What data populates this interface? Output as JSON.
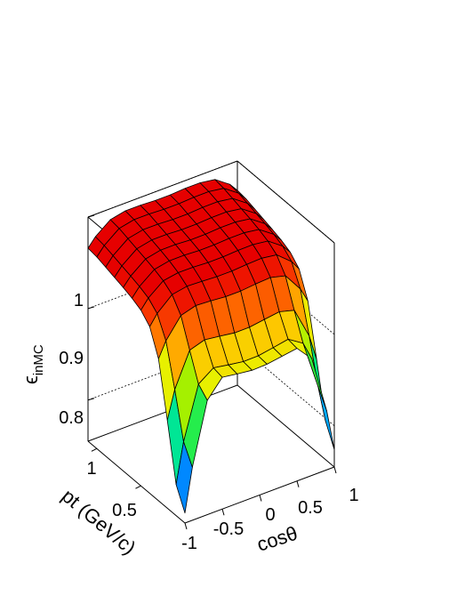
{
  "chart_data": {
    "type": "surface",
    "zlabel": "ϵ",
    "zlabel_sub": "inMC",
    "xlabel": "cosθ",
    "ylabel": "pt (GeV/c)",
    "x_ticks": [
      "-1",
      "-0.5",
      "0",
      "0.5",
      "1"
    ],
    "y_ticks": [
      "0.5",
      "1"
    ],
    "z_ticks": [
      "0.8",
      "0.9",
      "1"
    ],
    "xlim": [
      -1,
      1
    ],
    "ylim": [
      0,
      1.1
    ],
    "zlim": [
      0.755,
      1.0
    ],
    "x_edges": [
      -1.0,
      -0.9,
      -0.7,
      -0.5,
      -0.3,
      -0.1,
      0.1,
      0.3,
      0.5,
      0.7,
      0.9,
      1.0
    ],
    "y_edges": [
      0.0,
      0.1,
      0.2,
      0.3,
      0.4,
      0.5,
      0.6,
      0.7,
      0.8,
      0.9,
      1.0,
      1.1
    ],
    "z": [
      [
        0.766,
        0.86,
        0.9,
        0.898,
        0.895,
        0.894,
        0.896,
        0.899,
        0.901,
        0.864,
        0.774
      ],
      [
        0.812,
        0.893,
        0.905,
        0.902,
        0.898,
        0.896,
        0.898,
        0.902,
        0.905,
        0.895,
        0.82
      ],
      [
        0.89,
        0.932,
        0.944,
        0.944,
        0.942,
        0.94,
        0.942,
        0.944,
        0.944,
        0.933,
        0.892
      ],
      [
        0.93,
        0.955,
        0.962,
        0.962,
        0.96,
        0.96,
        0.96,
        0.962,
        0.962,
        0.956,
        0.932
      ],
      [
        0.944,
        0.965,
        0.97,
        0.97,
        0.969,
        0.968,
        0.969,
        0.97,
        0.97,
        0.966,
        0.946
      ],
      [
        0.95,
        0.97,
        0.975,
        0.976,
        0.975,
        0.974,
        0.975,
        0.976,
        0.975,
        0.971,
        0.952
      ],
      [
        0.954,
        0.973,
        0.979,
        0.98,
        0.979,
        0.978,
        0.979,
        0.98,
        0.979,
        0.975,
        0.956
      ],
      [
        0.957,
        0.976,
        0.982,
        0.983,
        0.982,
        0.981,
        0.982,
        0.983,
        0.982,
        0.978,
        0.959
      ],
      [
        0.96,
        0.979,
        0.985,
        0.986,
        0.985,
        0.984,
        0.985,
        0.986,
        0.985,
        0.981,
        0.962
      ],
      [
        0.963,
        0.982,
        0.988,
        0.989,
        0.988,
        0.987,
        0.988,
        0.989,
        0.988,
        0.984,
        0.965
      ],
      [
        0.966,
        0.985,
        0.991,
        0.992,
        0.991,
        0.99,
        0.991,
        0.992,
        0.991,
        0.987,
        0.968
      ]
    ],
    "colormap": "rainbow (blue → cyan → green → yellow → orange → red)",
    "grid": true
  }
}
